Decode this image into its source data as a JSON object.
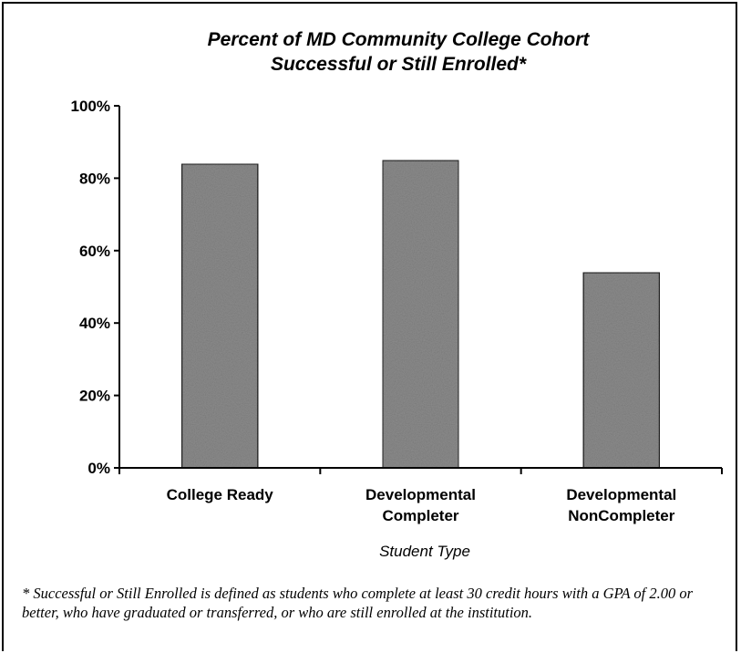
{
  "chart_data": {
    "type": "bar",
    "title": [
      "Percent of MD Community College Cohort",
      "Successful or Still Enrolled*"
    ],
    "categories": [
      [
        "College Ready"
      ],
      [
        "Developmental",
        "Completer"
      ],
      [
        "Developmental",
        "NonCompleter"
      ]
    ],
    "values": [
      84,
      85,
      54
    ],
    "xlabel": "Student Type",
    "ylabel": "",
    "ylim": [
      0,
      100
    ],
    "yticks": [
      "0%",
      "20%",
      "40%",
      "60%",
      "80%",
      "100%"
    ],
    "grid": false,
    "legend": "none",
    "bar_color": "#8c8c8c"
  },
  "footnote": "* Successful or Still Enrolled is defined as students who complete at least 30 credit hours with a GPA of 2.00 or better, who have graduated or transferred, or who are still enrolled at the institution."
}
